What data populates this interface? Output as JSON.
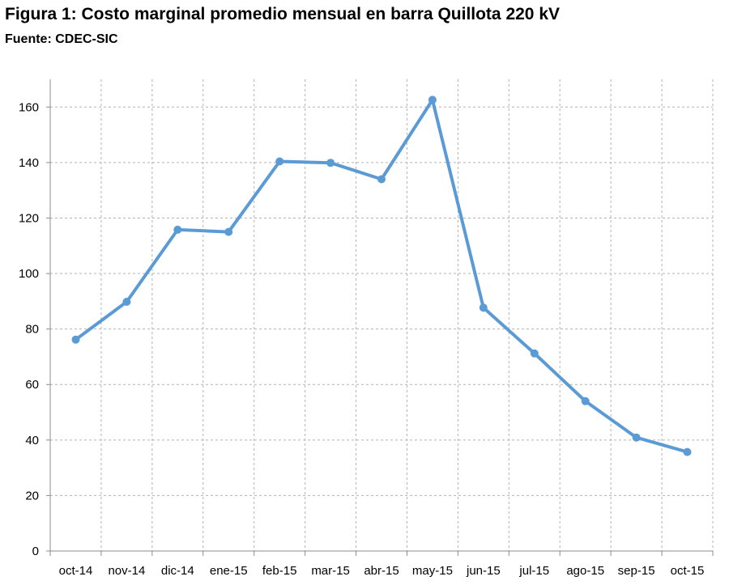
{
  "figure": {
    "title": "Figura 1: Costo marginal promedio mensual en barra Quillota 220 kV",
    "source": "Fuente:  CDEC-SIC"
  },
  "chart_data": {
    "type": "line",
    "title": "Figura 1: Costo marginal promedio mensual en barra Quillota 220 kV",
    "subtitle": "Fuente:  CDEC-SIC",
    "xlabel": "",
    "ylabel": "",
    "categories": [
      "oct-14",
      "nov-14",
      "dic-14",
      "ene-15",
      "feb-15",
      "mar-15",
      "abr-15",
      "may-15",
      "jun-15",
      "jul-15",
      "ago-15",
      "sep-15",
      "oct-15"
    ],
    "series": [
      {
        "values": [
          76.2,
          89.8,
          115.8,
          115.0,
          140.4,
          139.9,
          134.0,
          162.6,
          87.7,
          71.2,
          54.0,
          40.9,
          35.7
        ],
        "color": "#5b9bd5"
      }
    ],
    "ylim": [
      0,
      170
    ],
    "yticks": [
      0,
      20,
      40,
      60,
      80,
      100,
      120,
      140,
      160
    ],
    "grid": true,
    "legend": "none"
  }
}
